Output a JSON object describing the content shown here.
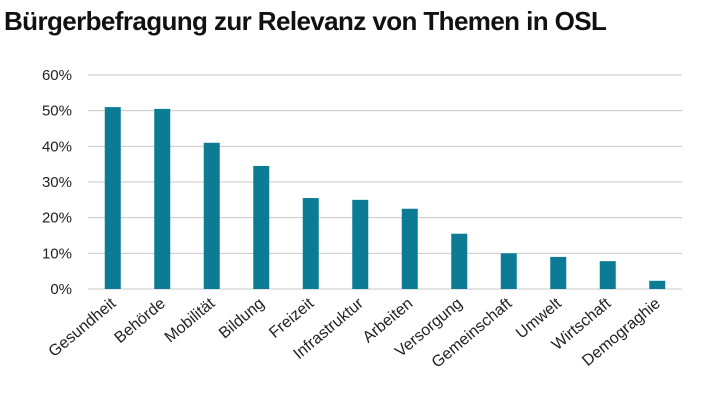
{
  "title": "Bürgerbefragung zur Relevanz von Themen in OSL",
  "colors": {
    "bar": "#0b7c93",
    "grid": "#c8c8c8",
    "text": "#222222"
  },
  "chart_data": {
    "type": "bar",
    "title": "Bürgerbefragung zur Relevanz von Themen in OSL",
    "xlabel": "",
    "ylabel": "",
    "ylim": [
      0,
      60
    ],
    "yticks": [
      0,
      10,
      20,
      30,
      40,
      50,
      60
    ],
    "ytick_labels": [
      "0%",
      "10%",
      "20%",
      "30%",
      "40%",
      "50%",
      "60%"
    ],
    "grid": true,
    "legend": "none",
    "categories": [
      "Gesundheit",
      "Behörde",
      "Mobilität",
      "Bildung",
      "Freizeit",
      "Infrastruktur",
      "Arbeiten",
      "Versorgung",
      "Gemeinschaft",
      "Umwelt",
      "Wirtschaft",
      "Demograghie"
    ],
    "values": [
      51,
      50.5,
      41,
      34.5,
      25.5,
      25,
      22.5,
      15.5,
      10,
      9,
      7.8,
      2.3
    ]
  }
}
